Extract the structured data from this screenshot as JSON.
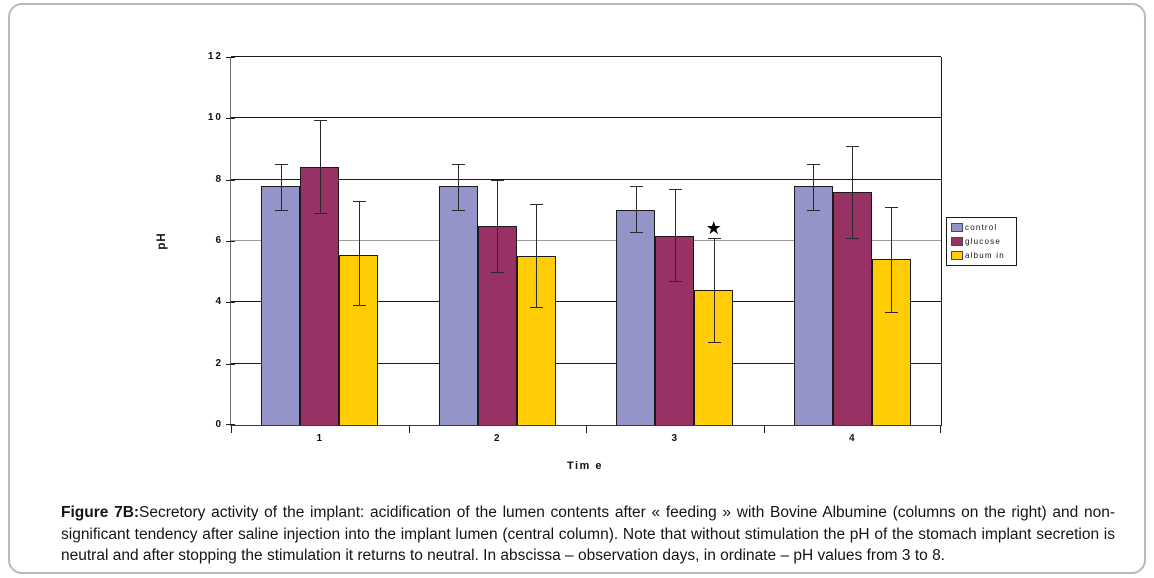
{
  "figure": {
    "caption_label": "Figure 7B:",
    "caption_text": "Secretory activity of the implant: acidification of the lumen contents after « feeding » with Bovine Albumine (columns on the right) and non-significant tendency after saline injection into the implant lumen (central column). Note that without stimulation the pH of the stomach implant secretion is neutral and after stopping the stimulation it returns to neutral. In abscissa – observation days, in ordinate – pH values from 3 to 8."
  },
  "chart_data": {
    "type": "bar",
    "title": "",
    "xlabel": "Tim e",
    "ylabel": "pH",
    "categories": [
      "1",
      "2",
      "3",
      "4"
    ],
    "ylim": [
      0,
      12
    ],
    "yticks": [
      0,
      2,
      4,
      6,
      8,
      10,
      12
    ],
    "grid": true,
    "gray_gridline_at": 6,
    "legend_position": "right",
    "series": [
      {
        "name": "control",
        "color": "#9494C8",
        "values": [
          7.8,
          7.8,
          7.0,
          7.8
        ],
        "err_low": [
          7.0,
          7.0,
          6.3,
          7.0
        ],
        "err_high": [
          8.5,
          8.5,
          7.8,
          8.5
        ]
      },
      {
        "name": "glucose",
        "color": "#983264",
        "values": [
          8.4,
          6.5,
          6.15,
          7.6
        ],
        "err_low": [
          6.9,
          5.0,
          4.7,
          6.1
        ],
        "err_high": [
          9.95,
          8.0,
          7.7,
          9.1
        ]
      },
      {
        "name": "album in",
        "color": "#FFCC05",
        "values": [
          5.55,
          5.5,
          4.4,
          5.4
        ],
        "err_low": [
          3.9,
          3.85,
          2.7,
          3.7
        ],
        "err_high": [
          7.3,
          7.2,
          6.1,
          7.1
        ]
      }
    ],
    "annotations": [
      {
        "type": "star",
        "symbol": "★",
        "category": "3",
        "series": "album in",
        "value": 6.4
      }
    ]
  }
}
